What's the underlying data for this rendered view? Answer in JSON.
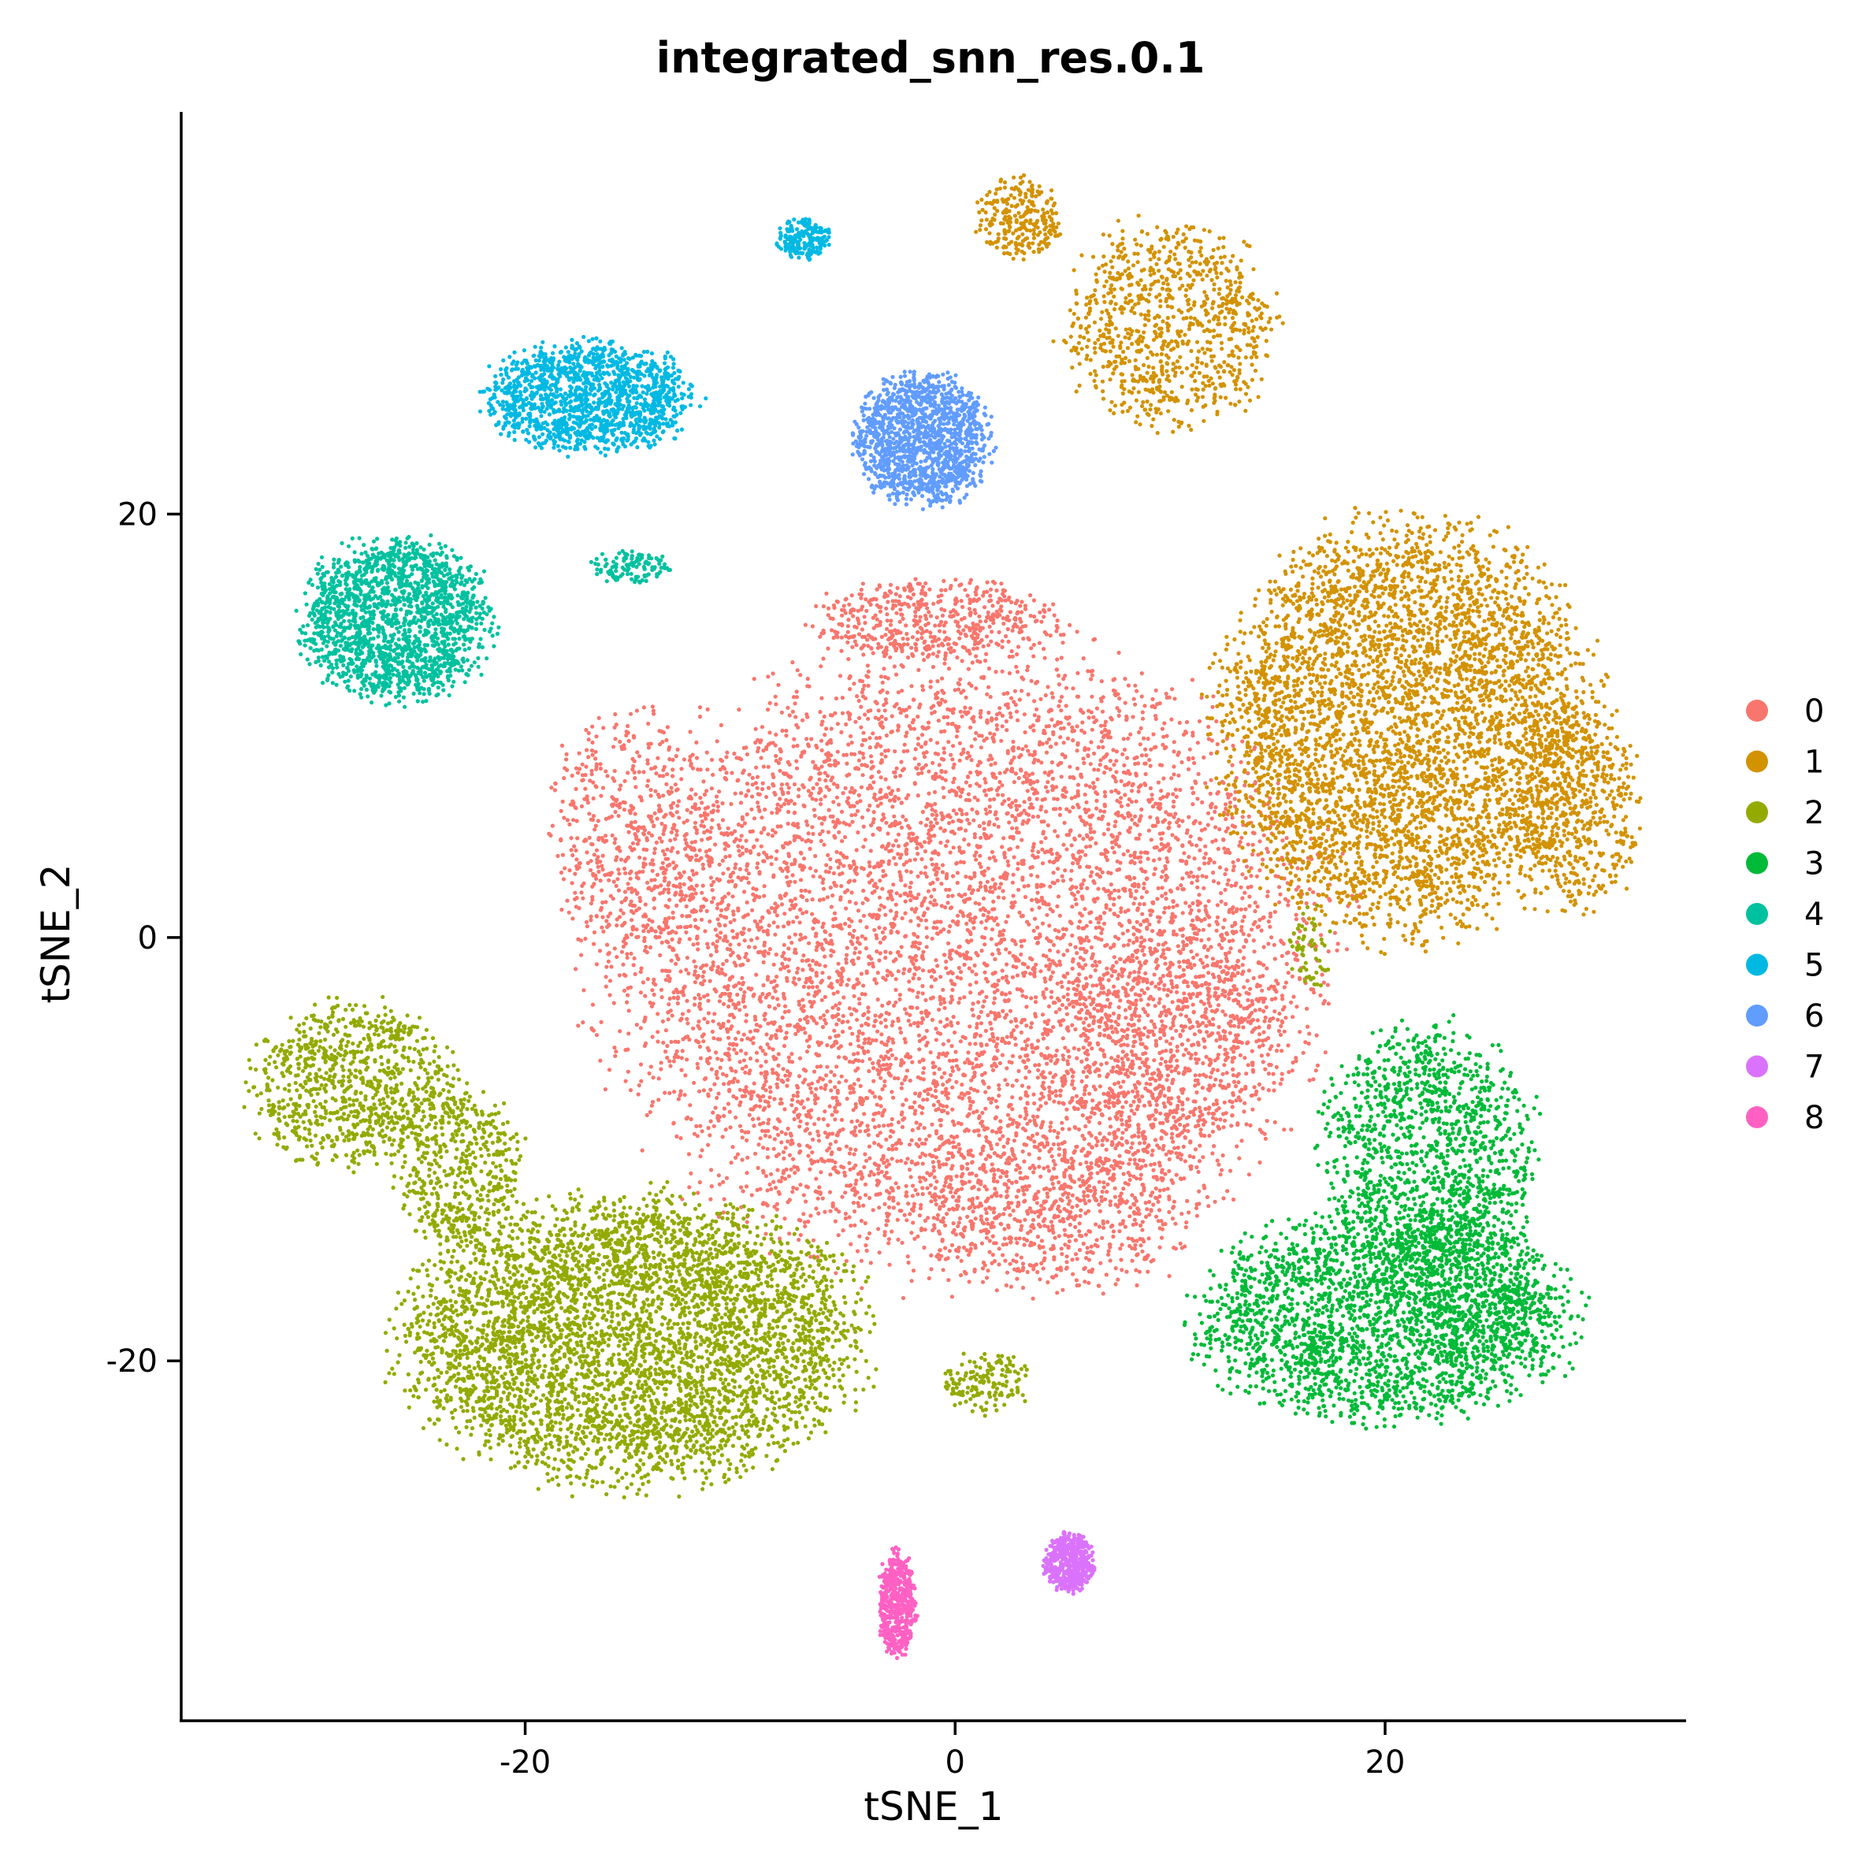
{
  "chart_data": {
    "type": "scatter",
    "title": "integrated_snn_res.0.1",
    "xlabel": "tSNE_1",
    "ylabel": "tSNE_2",
    "xlim": [
      -36,
      34
    ],
    "ylim": [
      -37,
      39
    ],
    "xticks": [
      -20,
      0,
      20
    ],
    "yticks": [
      -20,
      0,
      20
    ],
    "grid": false,
    "legend_position": "right",
    "series": [
      {
        "name": "0",
        "color": "#F8766D",
        "clusters": [
          {
            "cx": 0.5,
            "cy": -1,
            "rx": 17,
            "ry": 15,
            "n": 7000
          },
          {
            "cx": -15,
            "cy": 5,
            "rx": 4,
            "ry": 6,
            "n": 500
          },
          {
            "cx": -1,
            "cy": 15,
            "rx": 6,
            "ry": 2,
            "n": 500
          },
          {
            "cx": 10,
            "cy": -5,
            "rx": 5,
            "ry": 6,
            "n": 500
          },
          {
            "cx": 5,
            "cy": -13,
            "rx": 7,
            "ry": 4,
            "n": 500
          }
        ]
      },
      {
        "name": "1",
        "color": "#D39200",
        "clusters": [
          {
            "cx": 21,
            "cy": 10,
            "rx": 9,
            "ry": 10,
            "n": 4500
          },
          {
            "cx": 29,
            "cy": 6,
            "rx": 3,
            "ry": 5,
            "n": 500
          },
          {
            "cx": 10,
            "cy": 29,
            "rx": 5,
            "ry": 5,
            "n": 900
          },
          {
            "cx": 3,
            "cy": 34,
            "rx": 2,
            "ry": 2,
            "n": 250
          }
        ]
      },
      {
        "name": "2",
        "color": "#93AA00",
        "clusters": [
          {
            "cx": -15,
            "cy": -19,
            "rx": 11,
            "ry": 7,
            "n": 4500
          },
          {
            "cx": -28,
            "cy": -7,
            "rx": 5,
            "ry": 4,
            "n": 900
          },
          {
            "cx": -23,
            "cy": -11,
            "rx": 3,
            "ry": 4,
            "n": 500
          },
          {
            "cx": 1.5,
            "cy": -21,
            "rx": 2,
            "ry": 1.5,
            "n": 150
          },
          {
            "cx": 16.5,
            "cy": -0.5,
            "rx": 1,
            "ry": 2,
            "n": 60
          }
        ]
      },
      {
        "name": "3",
        "color": "#00BA38",
        "clusters": [
          {
            "cx": 20,
            "cy": -18,
            "rx": 9,
            "ry": 5,
            "n": 2400
          },
          {
            "cx": 22,
            "cy": -10,
            "rx": 5,
            "ry": 6,
            "n": 1200
          },
          {
            "cx": 24,
            "cy": -16,
            "rx": 3,
            "ry": 5,
            "n": 400
          }
        ]
      },
      {
        "name": "4",
        "color": "#00C19F",
        "clusters": [
          {
            "cx": -26,
            "cy": 15,
            "rx": 4.5,
            "ry": 4,
            "n": 1800
          },
          {
            "cx": -15,
            "cy": 17.5,
            "rx": 2,
            "ry": 0.8,
            "n": 120
          }
        ]
      },
      {
        "name": "5",
        "color": "#00B9E3",
        "clusters": [
          {
            "cx": -17,
            "cy": 25.5,
            "rx": 5,
            "ry": 2.7,
            "n": 1400
          },
          {
            "cx": -7,
            "cy": 33,
            "rx": 1.3,
            "ry": 1,
            "n": 200
          }
        ]
      },
      {
        "name": "6",
        "color": "#619CFF",
        "clusters": [
          {
            "cx": -1.5,
            "cy": 23.5,
            "rx": 3.2,
            "ry": 3.2,
            "n": 1400
          }
        ]
      },
      {
        "name": "7",
        "color": "#DB72FB",
        "clusters": [
          {
            "cx": 5.3,
            "cy": -29.5,
            "rx": 1.2,
            "ry": 1.4,
            "n": 500
          }
        ]
      },
      {
        "name": "8",
        "color": "#FF61C3",
        "clusters": [
          {
            "cx": -2.7,
            "cy": -31.5,
            "rx": 0.9,
            "ry": 2.5,
            "n": 500
          }
        ]
      }
    ]
  }
}
